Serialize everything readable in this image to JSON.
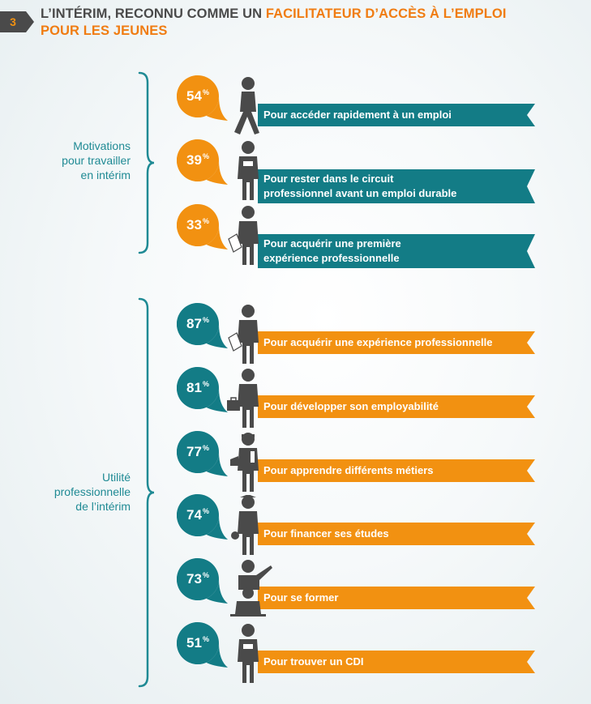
{
  "header": {
    "number": "3",
    "title_dark_1": "L’INTÉRIM, RECONNU COMME UN ",
    "title_orange_1": "FACILITATEUR D’ACCÈS À L’EMPLOI",
    "title_orange_2": "POUR LES JEUNES"
  },
  "groups": [
    {
      "label_lines": [
        "Motivations",
        "pour travailler",
        "en intérim"
      ]
    },
    {
      "label_lines": [
        "Utilité",
        "professionnelle",
        "de l’intérim"
      ]
    }
  ],
  "colors": {
    "orange": "#f29111",
    "teal": "#137c86",
    "dark": "#4a4a4a"
  },
  "chart_data": {
    "type": "bar",
    "groups": [
      {
        "name": "Motivations pour travailler en intérim",
        "items": [
          {
            "value": 54,
            "pct_label": "54",
            "label_lines": [
              "Pour accéder rapidement à un emploi"
            ],
            "icon": "walking-person-icon"
          },
          {
            "value": 39,
            "pct_label": "39",
            "label_lines": [
              "Pour rester dans le circuit",
              "professionnel avant un emploi durable"
            ],
            "icon": "badge-person-icon"
          },
          {
            "value": 33,
            "pct_label": "33",
            "label_lines": [
              "Pour acquérir une première",
              "expérience professionnelle"
            ],
            "icon": "document-person-icon"
          }
        ]
      },
      {
        "name": "Utilité professionnelle de l’intérim",
        "items": [
          {
            "value": 87,
            "pct_label": "87",
            "label_lines": [
              "Pour acquérir une expérience professionnelle"
            ],
            "icon": "document-person-icon"
          },
          {
            "value": 81,
            "pct_label": "81",
            "label_lines": [
              "Pour développer son employabilité"
            ],
            "icon": "briefcase-person-icon"
          },
          {
            "value": 77,
            "pct_label": "77",
            "label_lines": [
              "Pour apprendre différents métiers"
            ],
            "icon": "worker-person-icon"
          },
          {
            "value": 74,
            "pct_label": "74",
            "label_lines": [
              "Pour financer ses études"
            ],
            "icon": "student-person-icon"
          },
          {
            "value": 73,
            "pct_label": "73",
            "label_lines": [
              "Pour se former"
            ],
            "icon": "teacher-person-icon"
          },
          {
            "value": 51,
            "pct_label": "51",
            "label_lines": [
              "Pour trouver un CDI"
            ],
            "icon": "badge-person-icon"
          }
        ]
      }
    ],
    "unit": "%"
  }
}
